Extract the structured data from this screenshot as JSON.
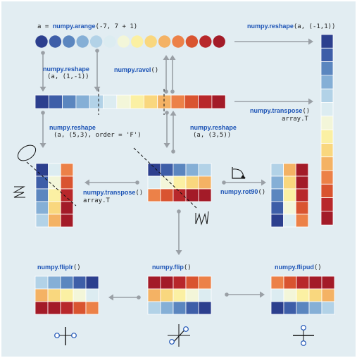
{
  "palette": [
    "#2c3f8e",
    "#3e5ea8",
    "#5b86bf",
    "#85afd6",
    "#b2d2e7",
    "#dcecf1",
    "#f3f6d9",
    "#fbf0a3",
    "#f9d77e",
    "#f4b264",
    "#ec8148",
    "#d95430",
    "#b8282b",
    "#a31b28"
  ],
  "labels": {
    "arange_prefix": "a = ",
    "arange_fn": "numpy.arange",
    "arange_args": "(-7, 7 + 1)",
    "reshape_col_fn": "numpy.reshape",
    "reshape_col_args": "(a, (-1,1))",
    "reshape_row_fn": "numpy.reshape",
    "reshape_row_args": "(a, (1,-1))",
    "ravel_fn": "numpy.ravel",
    "ravel_args": "()",
    "transpose_right_fn": "numpy.transpose",
    "transpose_right_args": "()",
    "transpose_right_alt": "array.T",
    "reshape_f_fn": "numpy.reshape",
    "reshape_f_args": "(a, (5,3), order = 'F')",
    "reshape_35_fn": "numpy.reshape",
    "reshape_35_args": "(a, (3,5))",
    "transpose_mid_fn": "numpy.transpose",
    "transpose_mid_args": "()",
    "transpose_mid_alt": "array.T",
    "rot90_fn": "numpy.rot90",
    "rot90_args": "()",
    "fliplr_fn": "numpy.fliplr",
    "fliplr_args": "()",
    "flip_fn": "numpy.flip",
    "flip_args": "()",
    "flipud_fn": "numpy.flipud",
    "flipud_args": "()"
  }
}
